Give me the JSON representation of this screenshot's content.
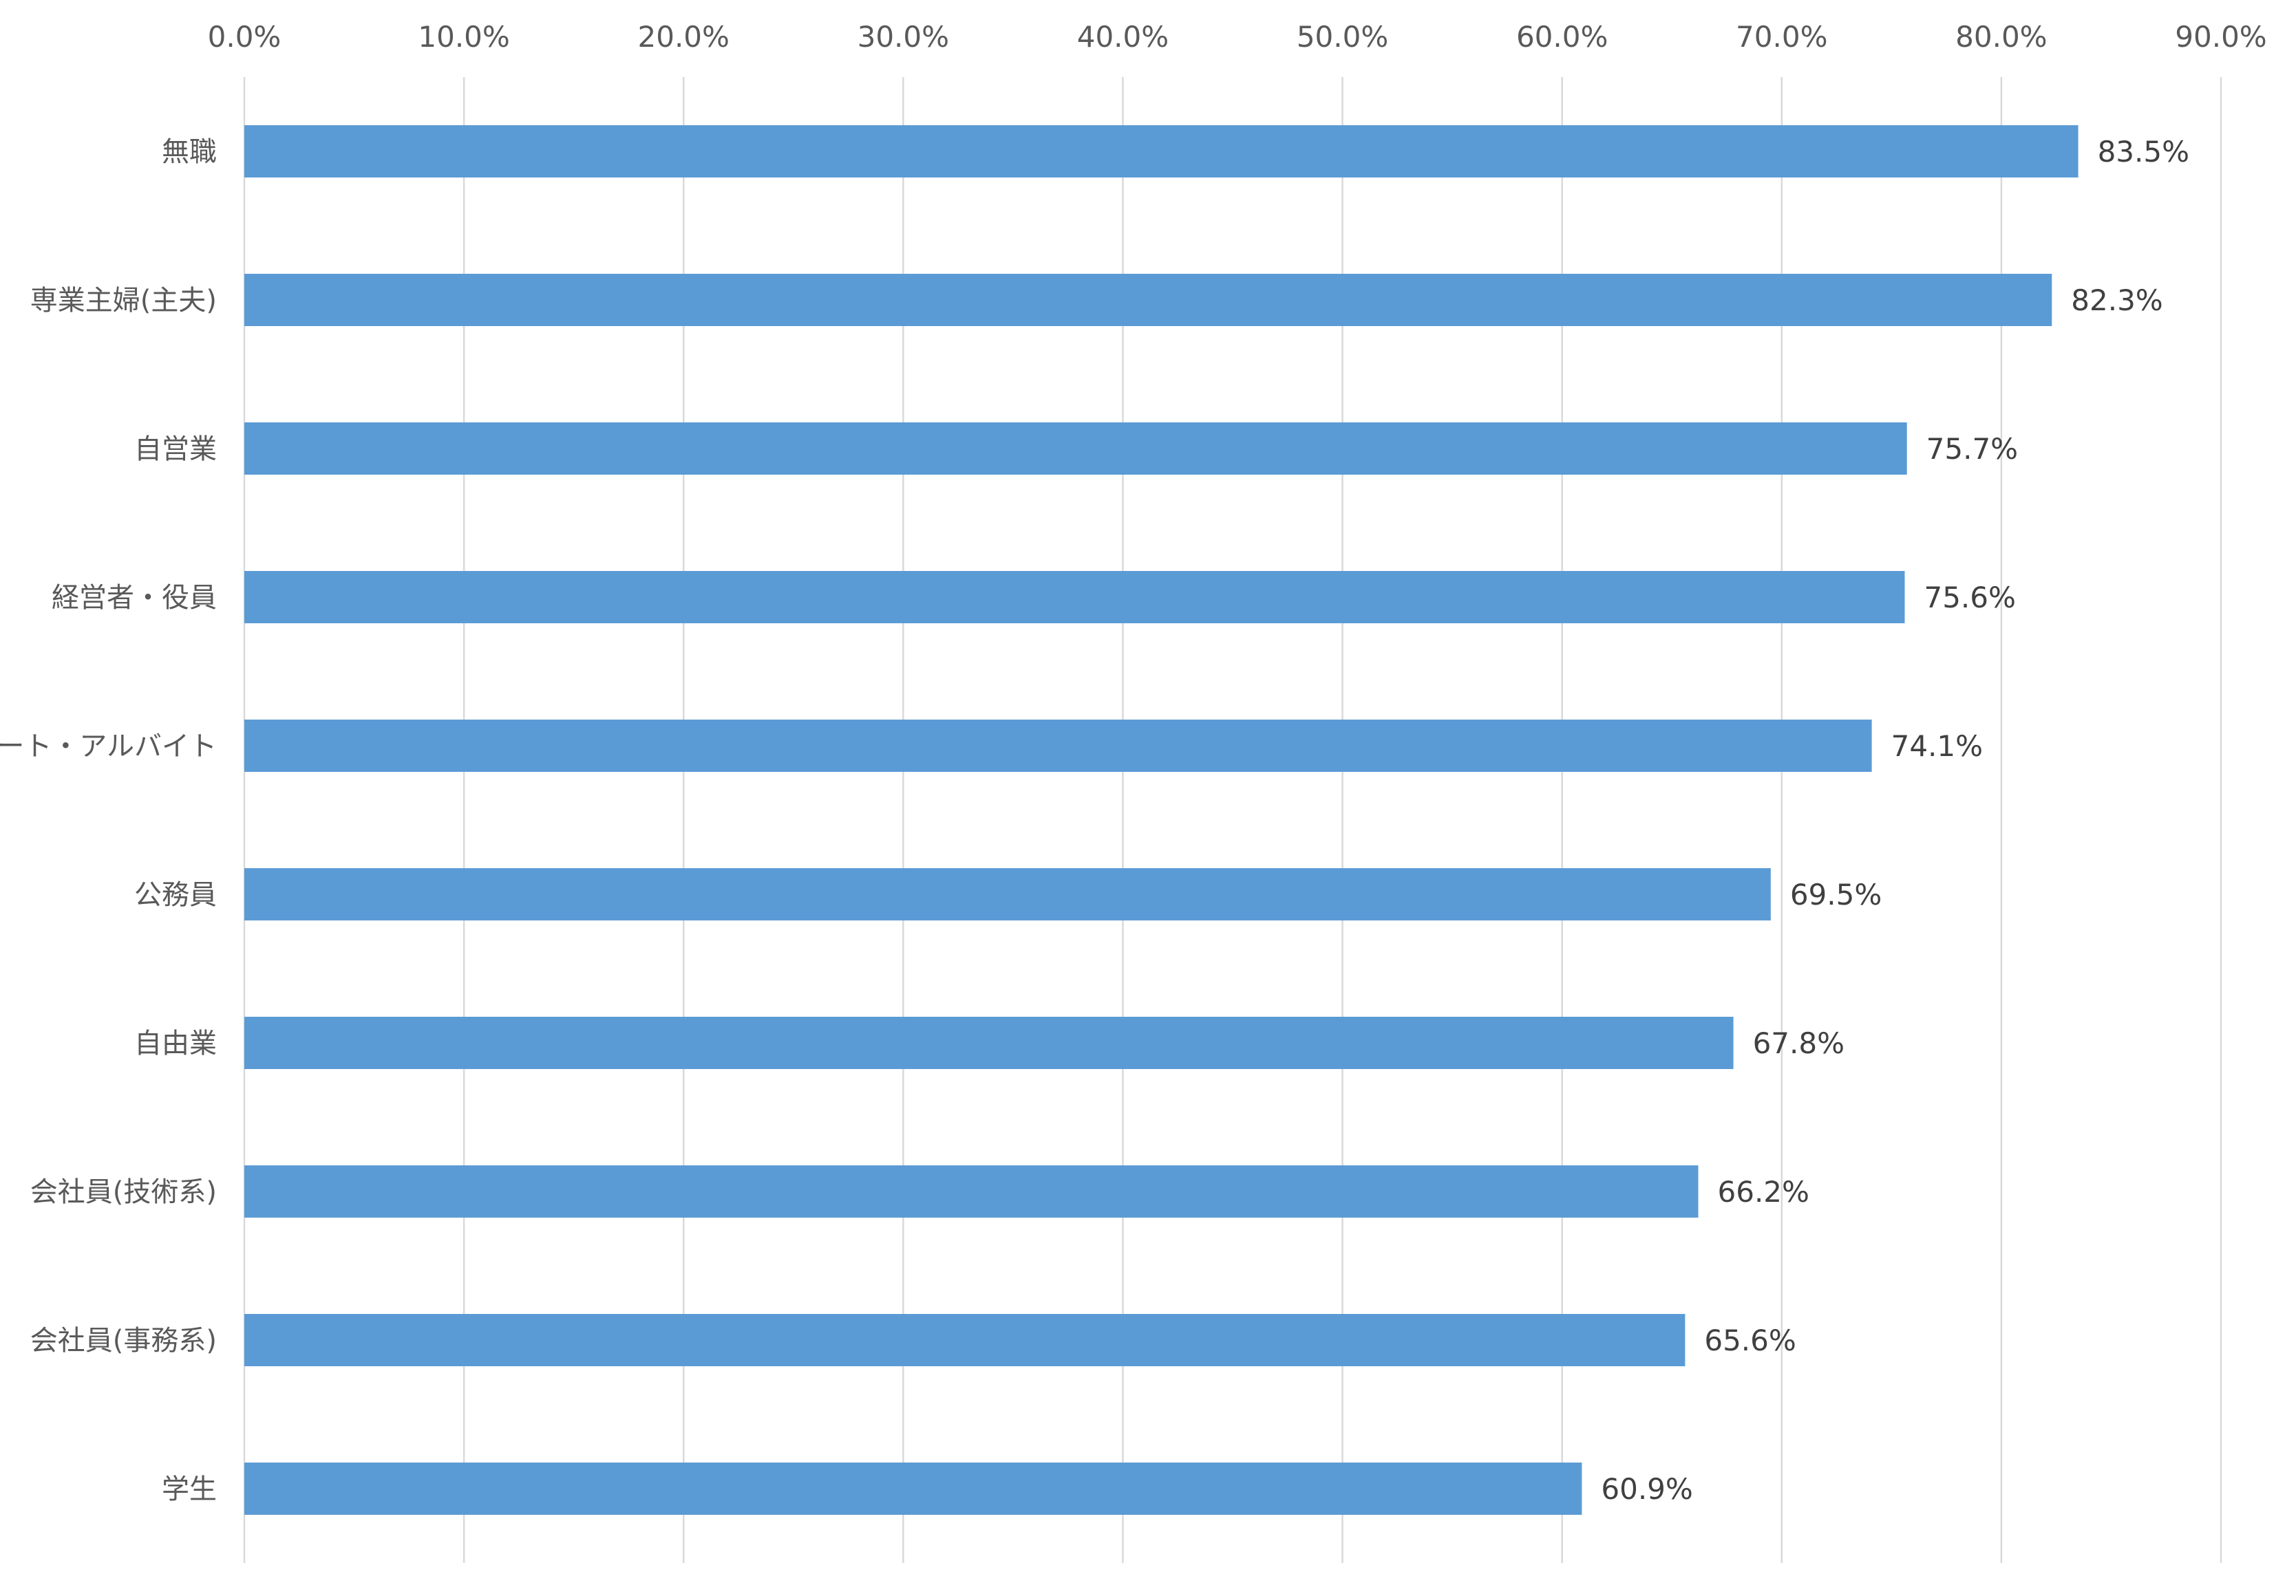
{
  "chart_data": {
    "type": "bar",
    "orientation": "horizontal",
    "categories": [
      "無職",
      "専業主婦(主夫)",
      "自営業",
      "経営者・役員",
      "パート・アルバイト",
      "公務員",
      "自由業",
      "会社員(技術系)",
      "会社員(事務系)",
      "学生"
    ],
    "values": [
      83.5,
      82.3,
      75.7,
      75.6,
      74.1,
      69.5,
      67.8,
      66.2,
      65.6,
      60.9
    ],
    "data_labels": [
      "83.5%",
      "82.3%",
      "75.7%",
      "75.6%",
      "74.1%",
      "69.5%",
      "67.8%",
      "66.2%",
      "65.6%",
      "60.9%"
    ],
    "xlim": [
      0,
      90
    ],
    "x_ticks": [
      0,
      10,
      20,
      30,
      40,
      50,
      60,
      70,
      80,
      90
    ],
    "x_tick_labels": [
      "0.0%",
      "10.0%",
      "20.0%",
      "30.0%",
      "40.0%",
      "50.0%",
      "60.0%",
      "70.0%",
      "80.0%",
      "90.0%"
    ],
    "x_axis_position": "top",
    "grid": true,
    "legend": false,
    "title": "",
    "xlabel": "",
    "ylabel": "",
    "colors": {
      "bar": "#5b9bd5",
      "grid": "#d9d9d9",
      "text": "#595959",
      "data_label": "#404040"
    }
  }
}
